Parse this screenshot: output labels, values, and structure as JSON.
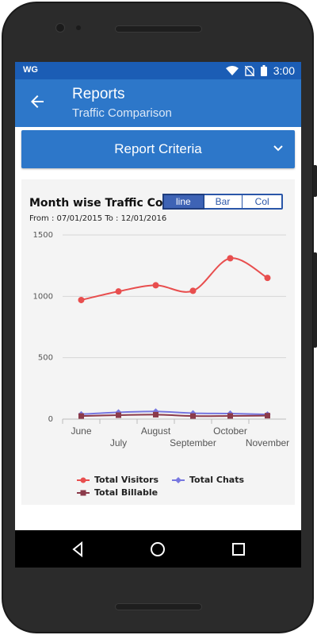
{
  "status_bar": {
    "carrier_logo": "WG",
    "time": "3:00",
    "icons": [
      "wifi-icon",
      "no-sim-icon",
      "battery-icon"
    ]
  },
  "app_bar": {
    "title": "Reports",
    "subtitle": "Traffic Comparison"
  },
  "report_criteria": {
    "label": "Report Criteria"
  },
  "chart_card": {
    "title": "Month wise Traffic Comparison",
    "date_range": "From : 07/01/2015 To : 12/01/2016",
    "toggle": {
      "options": [
        "line",
        "Bar",
        "Col"
      ],
      "selected": "line"
    }
  },
  "chart_data": {
    "type": "line",
    "categories": [
      "June",
      "July",
      "August",
      "September",
      "October",
      "November"
    ],
    "ylim": [
      0,
      1500
    ],
    "yticks": [
      "1500",
      "1000",
      "500",
      "0"
    ],
    "grid": true,
    "legend_position": "bottom",
    "series": [
      {
        "name": "Total Visitors",
        "color": "#e84e4e",
        "marker": "circle",
        "values": [
          970,
          1040,
          1090,
          1045,
          1310,
          1150
        ]
      },
      {
        "name": "Total Chats",
        "color": "#7777e0",
        "marker": "diamond",
        "values": [
          40,
          55,
          62,
          48,
          45,
          38
        ]
      },
      {
        "name": "Total Billable",
        "color": "#8b3a4a",
        "marker": "square",
        "values": [
          25,
          32,
          36,
          25,
          26,
          28
        ]
      }
    ]
  },
  "colors": {
    "primary": "#2d77c9",
    "status_bar": "#1b5db5"
  }
}
